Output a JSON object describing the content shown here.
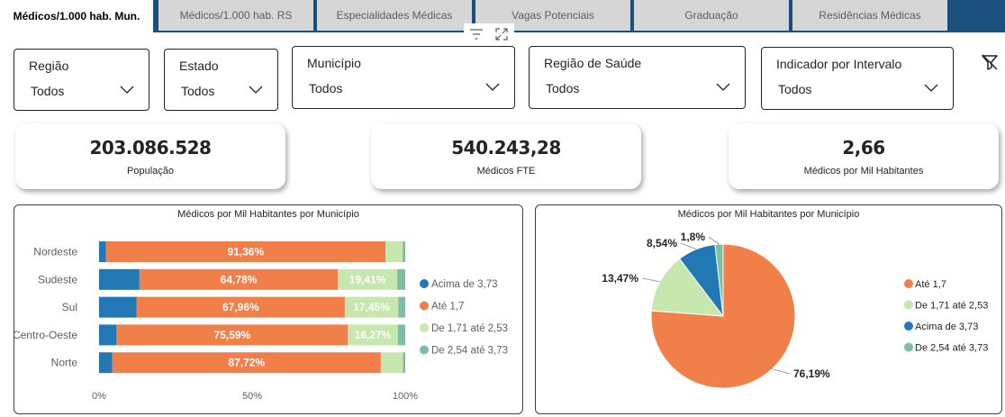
{
  "tabs": [
    {
      "label": "Médicos/1.000 hab. Mun.",
      "active": true
    },
    {
      "label": "Médicos/1.000 hab. RS",
      "active": false
    },
    {
      "label": "Especialidades Médicas",
      "active": false
    },
    {
      "label": "Vagas Potenciais",
      "active": false
    },
    {
      "label": "Graduação",
      "active": false
    },
    {
      "label": "Residências Médicas",
      "active": false
    }
  ],
  "slicers": [
    {
      "label": "Região",
      "value": "Todos"
    },
    {
      "label": "Estado",
      "value": "Todos"
    },
    {
      "label": "Município",
      "value": "Todos"
    },
    {
      "label": "Região de Saúde",
      "value": "Todos"
    },
    {
      "label": "Indicador por Intervalo",
      "value": "Todos"
    }
  ],
  "kpis": [
    {
      "value": "203.086.528",
      "caption": "População"
    },
    {
      "value": "540.243,28",
      "caption": "Médicos FTE"
    },
    {
      "value": "2,66",
      "caption": "Médicos por Mil Habitantes"
    }
  ],
  "colors": {
    "acima": "#2178b4",
    "ate": "#f07f4a",
    "de171": "#c6e8ae",
    "de254": "#7dbfa0",
    "tab_bar": "#1d4f7c"
  },
  "chart_data": [
    {
      "type": "bar",
      "orientation": "horizontal-stacked-100",
      "title": "Médicos por Mil Habitantes por Município",
      "categories": [
        "Nordeste",
        "Sudeste",
        "Sul",
        "Centro-Oeste",
        "Norte"
      ],
      "series": [
        {
          "name": "Acima de 3,73",
          "color": "#2178b4",
          "values": [
            2.2,
            13.2,
            12.3,
            5.7,
            4.3
          ],
          "labels": [
            "",
            "",
            "",
            "",
            ""
          ]
        },
        {
          "name": "Até 1,7",
          "color": "#f07f4a",
          "values": [
            91.36,
            64.78,
            67.96,
            75.59,
            87.72
          ],
          "labels": [
            "91,36%",
            "64,78%",
            "67,96%",
            "75,59%",
            "87,72%"
          ]
        },
        {
          "name": "De 1,71 até 2,53",
          "color": "#c6e8ae",
          "values": [
            5.6,
            19.41,
            17.45,
            16.27,
            7.2
          ],
          "labels": [
            "",
            "19,41%",
            "17,45%",
            "16,27%",
            ""
          ]
        },
        {
          "name": "De 2,54 até 3,73",
          "color": "#7dbfa0",
          "values": [
            0.84,
            2.61,
            2.29,
            2.44,
            0.78
          ],
          "labels": [
            "",
            "",
            "",
            "",
            ""
          ]
        }
      ],
      "xticks": [
        "0%",
        "50%",
        "100%"
      ],
      "xlim": [
        0,
        100
      ],
      "legend": [
        "Acima de 3,73",
        "Até 1,7",
        "De 1,71 até 2,53",
        "De 2,54 até 3,73"
      ]
    },
    {
      "type": "pie",
      "title": "Médicos por Mil Habitantes por Município",
      "slices": [
        {
          "name": "Até 1,7",
          "value": 76.19,
          "label": "76,19%",
          "color": "#f07f4a"
        },
        {
          "name": "De 1,71 até 2,53",
          "value": 13.47,
          "label": "13,47%",
          "color": "#c6e8ae"
        },
        {
          "name": "Acima de 3,73",
          "value": 8.54,
          "label": "8,54%",
          "color": "#2178b4"
        },
        {
          "name": "De 2,54 até 3,73",
          "value": 1.8,
          "label": "1,8%",
          "color": "#7dbfa0"
        }
      ],
      "legend": [
        "Até 1,7",
        "De 1,71 até 2,53",
        "Acima de 3,73",
        "De 2,54 até 3,73"
      ]
    }
  ]
}
